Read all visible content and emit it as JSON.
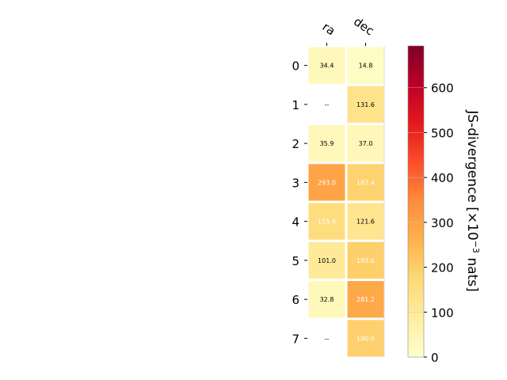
{
  "chart_data": {
    "type": "heatmap",
    "columns": [
      "ra",
      "dec"
    ],
    "rows": [
      "0",
      "1",
      "2",
      "3",
      "4",
      "5",
      "6",
      "7"
    ],
    "values": [
      [
        34.4,
        14.8
      ],
      [
        null,
        131.6
      ],
      [
        35.9,
        37.0
      ],
      [
        293.0,
        187.4
      ],
      [
        155.4,
        121.6
      ],
      [
        101.0,
        193.6
      ],
      [
        32.8,
        281.2
      ],
      [
        null,
        190.0
      ]
    ],
    "cell_labels": [
      [
        "34.4",
        "14.8"
      ],
      [
        "--",
        "131.6"
      ],
      [
        "35.9",
        "37.0"
      ],
      [
        "293.0",
        "187.4"
      ],
      [
        "155.4",
        "121.6"
      ],
      [
        "101.0",
        "193.6"
      ],
      [
        "32.8",
        "281.2"
      ],
      [
        "--",
        "190.0"
      ]
    ],
    "colorbar": {
      "label_parts": {
        "base": "JS-divergence [×10",
        "exponent": "−3",
        "tail": " nats]"
      },
      "ticks": [
        "0",
        "100",
        "200",
        "300",
        "400",
        "500",
        "600"
      ],
      "tick_values": [
        0,
        100,
        200,
        300,
        400,
        500,
        600
      ],
      "range": [
        0,
        693
      ],
      "colormap": "YlOrRd"
    }
  }
}
